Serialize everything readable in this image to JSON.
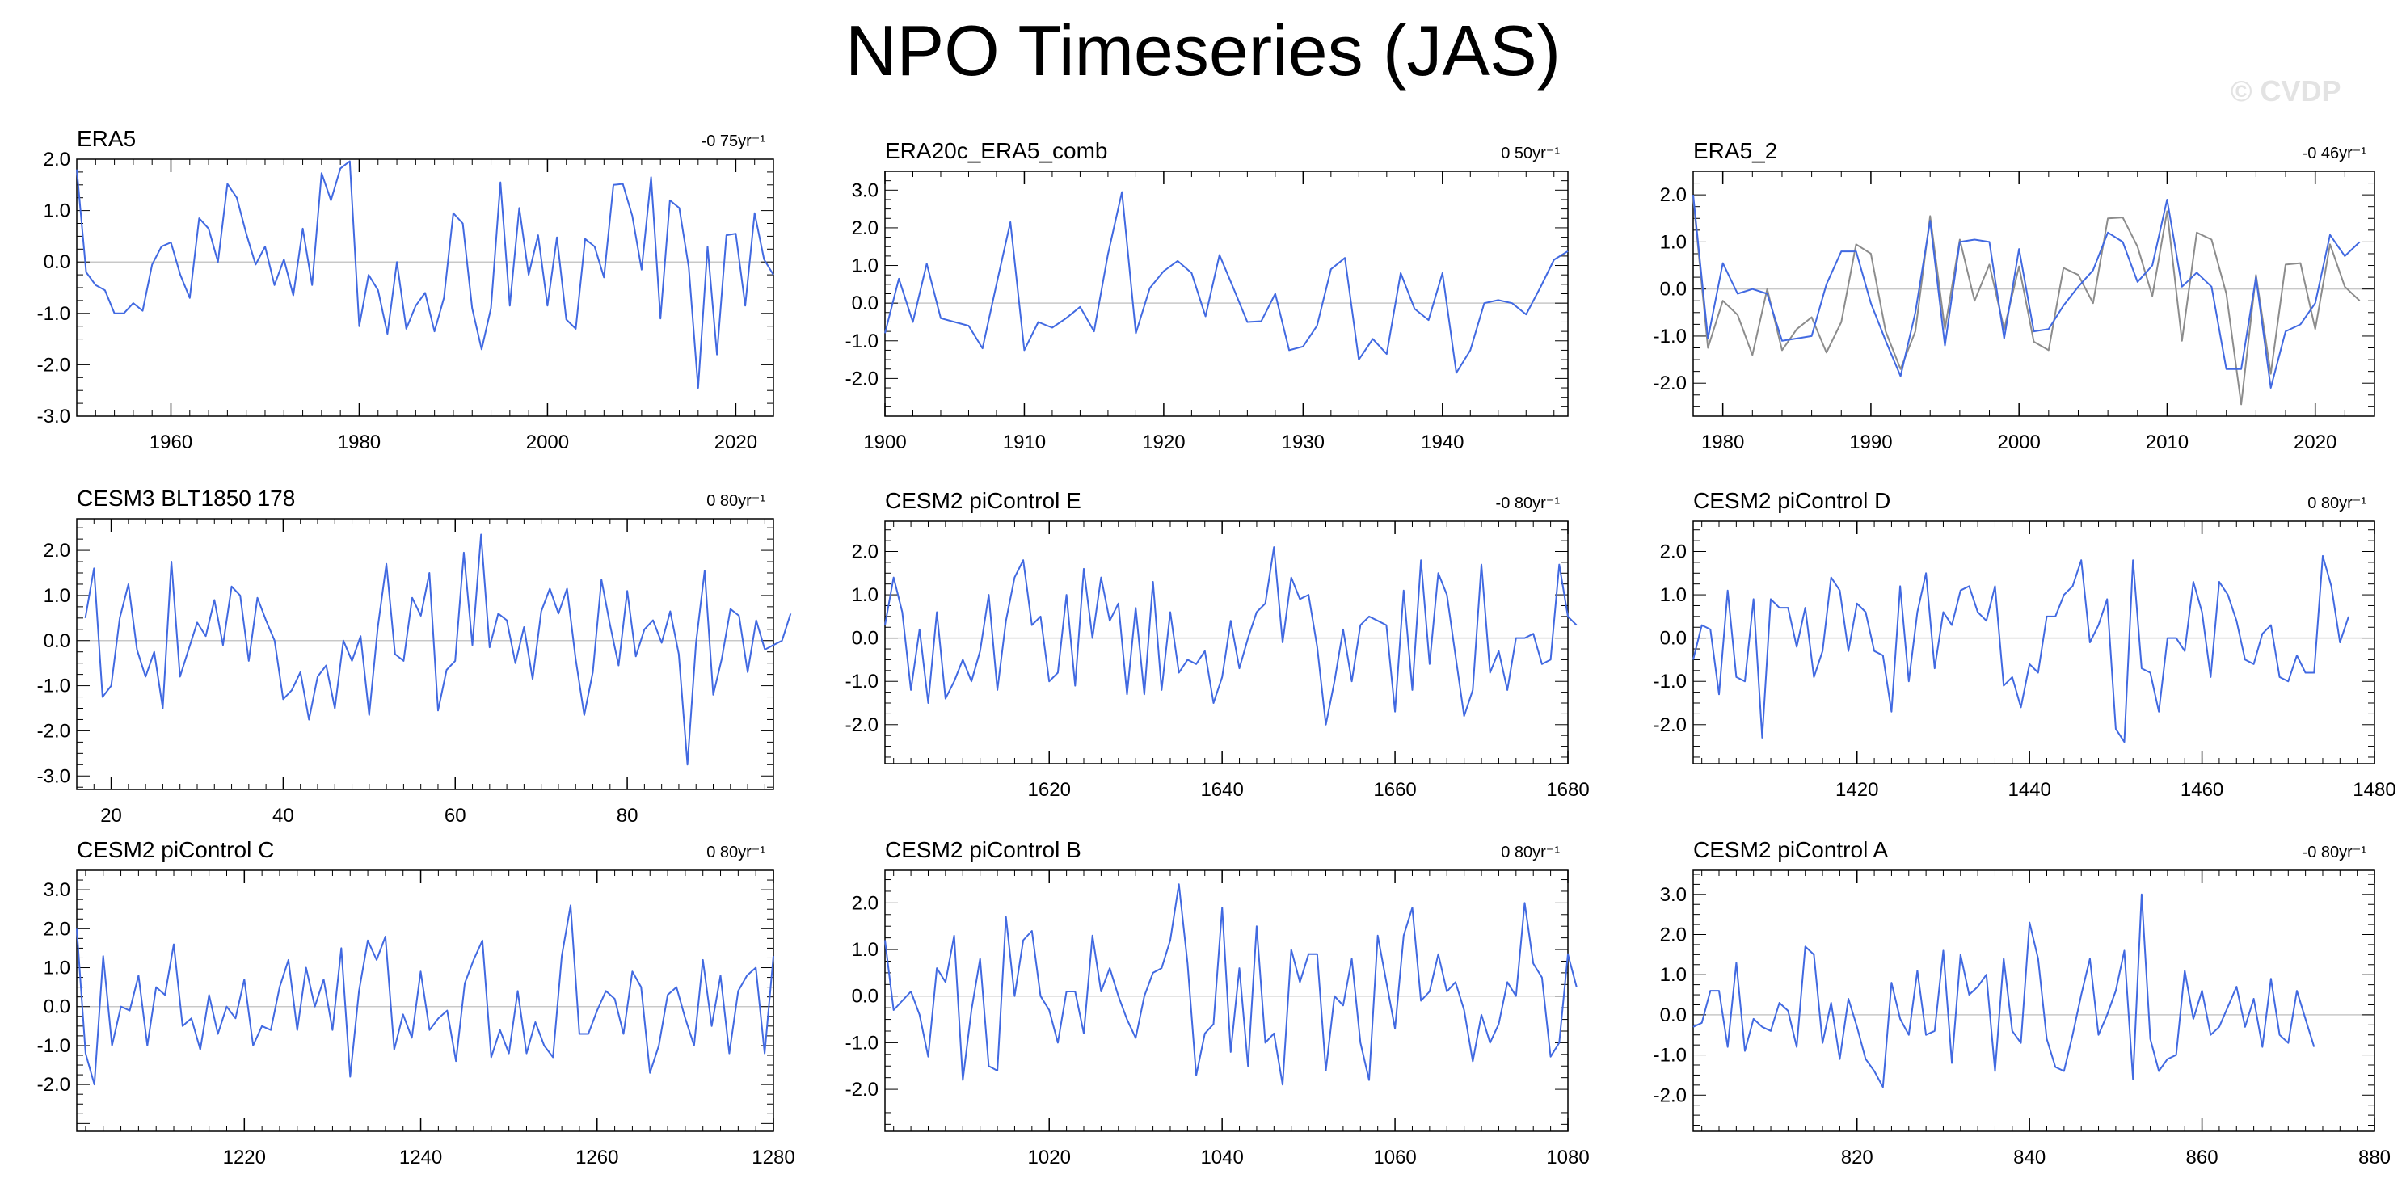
{
  "title": "NPO Timeseries (JAS)",
  "watermark": "© CVDP",
  "colors": {
    "primary": "#4169e1",
    "secondary": "#8c8c8c",
    "zero_line": "#c8c8c8",
    "axis": "#000000"
  },
  "chart_data": [
    {
      "type": "line",
      "title": "ERA5",
      "trend": "-0 75yr⁻¹",
      "xlim": [
        1950,
        2024
      ],
      "ylim": [
        -3,
        2
      ],
      "xticks": [
        1960,
        1980,
        2000,
        2020
      ],
      "yticks": [
        2,
        1,
        0,
        -1,
        -2,
        -3
      ],
      "ytick_labels": [
        "2.0",
        "1.0",
        "0.0",
        "-1.0",
        "-2.0",
        "-3.0"
      ],
      "x_start": 1950,
      "series": [
        {
          "color": "#4169e1",
          "values": [
            1.8,
            -0.2,
            -0.45,
            -0.55,
            -1.0,
            -1.0,
            -0.8,
            -0.95,
            -0.05,
            0.3,
            0.38,
            -0.25,
            -0.7,
            0.85,
            0.65,
            0.0,
            1.52,
            1.25,
            0.55,
            -0.05,
            0.3,
            -0.45,
            0.05,
            -0.65,
            0.65,
            -0.45,
            1.73,
            1.2,
            1.82,
            1.96,
            -1.25,
            -0.25,
            -0.55,
            -1.4,
            0.0,
            -1.3,
            -0.85,
            -0.6,
            -1.35,
            -0.7,
            0.95,
            0.75,
            -0.9,
            -1.7,
            -0.9,
            1.55,
            -0.85,
            1.05,
            -0.25,
            0.52,
            -0.85,
            0.48,
            -1.12,
            -1.3,
            0.45,
            0.3,
            -0.3,
            1.5,
            1.52,
            0.9,
            -0.15,
            1.65,
            -1.1,
            1.2,
            1.05,
            -0.1,
            -2.45,
            0.3,
            -1.8,
            0.52,
            0.55,
            -0.85,
            0.95,
            0.05,
            -0.25
          ]
        }
      ]
    },
    {
      "type": "line",
      "title": "ERA20c_ERA5_comb",
      "trend": "0 50yr⁻¹",
      "xlim": [
        1900,
        1949
      ],
      "ylim": [
        -3,
        3.5
      ],
      "xticks": [
        1900,
        1910,
        1920,
        1930,
        1940
      ],
      "yticks": [
        3,
        2,
        1,
        0,
        -1,
        -2
      ],
      "ytick_labels": [
        "3.0",
        "2.0",
        "1.0",
        "0.0",
        "-1.0",
        "-2.0"
      ],
      "x_start": 1900,
      "series": [
        {
          "color": "#4169e1",
          "values": [
            -0.8,
            0.65,
            -0.5,
            1.05,
            -0.4,
            -0.5,
            -0.6,
            -1.2,
            0.5,
            2.15,
            -1.25,
            -0.5,
            -0.65,
            -0.4,
            -0.1,
            -0.75,
            1.3,
            2.95,
            -0.8,
            0.4,
            0.85,
            1.12,
            0.8,
            -0.35,
            1.28,
            0.4,
            -0.5,
            -0.48,
            0.25,
            -1.25,
            -1.15,
            -0.6,
            0.9,
            1.2,
            -1.5,
            -0.95,
            -1.35,
            0.8,
            -0.15,
            -0.45,
            0.8,
            -1.85,
            -1.25,
            0.0,
            0.08,
            0.0,
            -0.3,
            0.4,
            1.15,
            1.38
          ]
        }
      ]
    },
    {
      "type": "line",
      "title": "ERA5_2",
      "trend": "-0 46yr⁻¹",
      "xlim": [
        1978,
        2024
      ],
      "ylim": [
        -2.7,
        2.5
      ],
      "xticks": [
        1980,
        1990,
        2000,
        2010,
        2020
      ],
      "yticks": [
        2,
        1,
        0,
        -1,
        -2
      ],
      "ytick_labels": [
        "2.0",
        "1.0",
        "0.0",
        "-1.0",
        "-2.0"
      ],
      "x_start": 1978,
      "series": [
        {
          "color": "#8c8c8c",
          "values": [
            1.95,
            -1.25,
            -0.25,
            -0.55,
            -1.4,
            0.0,
            -1.3,
            -0.85,
            -0.6,
            -1.35,
            -0.7,
            0.95,
            0.75,
            -0.9,
            -1.7,
            -0.9,
            1.55,
            -0.85,
            1.05,
            -0.25,
            0.52,
            -0.85,
            0.48,
            -1.12,
            -1.3,
            0.45,
            0.3,
            -0.3,
            1.5,
            1.52,
            0.9,
            -0.15,
            1.65,
            -1.1,
            1.2,
            1.05,
            -0.1,
            -2.45,
            0.3,
            -1.8,
            0.52,
            0.55,
            -0.85,
            0.95,
            0.05,
            -0.25
          ]
        },
        {
          "color": "#4169e1",
          "values": [
            2.0,
            -1.05,
            0.55,
            -0.1,
            0.0,
            -0.1,
            -1.1,
            -1.05,
            -1.0,
            0.1,
            0.8,
            0.8,
            -0.3,
            -1.1,
            -1.85,
            -0.5,
            1.45,
            -1.2,
            1.0,
            1.05,
            1.0,
            -1.05,
            0.85,
            -0.9,
            -0.85,
            -0.35,
            0.05,
            0.4,
            1.2,
            1.0,
            0.15,
            0.5,
            1.9,
            0.05,
            0.35,
            0.05,
            -1.7,
            -1.7,
            0.25,
            -2.1,
            -0.9,
            -0.75,
            -0.3,
            1.15,
            0.7,
            1.0
          ]
        }
      ]
    },
    {
      "type": "line",
      "title": "CESM3 BLT1850 178",
      "trend": "0 80yr⁻¹",
      "xlim": [
        16,
        97
      ],
      "ylim": [
        -3.3,
        2.7
      ],
      "xticks": [
        20,
        40,
        60,
        80
      ],
      "yticks": [
        2,
        1,
        0,
        -1,
        -2,
        -3
      ],
      "ytick_labels": [
        "2.0",
        "1.0",
        "0.0",
        "-1.0",
        "-2.0",
        "-3.0"
      ],
      "x_start": 17,
      "series": [
        {
          "color": "#4169e1",
          "values": [
            0.5,
            1.6,
            -1.25,
            -1.0,
            0.5,
            1.25,
            -0.2,
            -0.8,
            -0.25,
            -1.5,
            1.75,
            -0.8,
            -0.2,
            0.4,
            0.1,
            0.9,
            -0.1,
            1.2,
            1.0,
            -0.45,
            0.95,
            0.45,
            0.0,
            -1.3,
            -1.1,
            -0.7,
            -1.75,
            -0.8,
            -0.55,
            -1.5,
            0.0,
            -0.45,
            0.1,
            -1.65,
            0.3,
            1.7,
            -0.3,
            -0.45,
            0.95,
            0.55,
            1.5,
            -1.55,
            -0.65,
            -0.45,
            1.95,
            -0.1,
            2.35,
            -0.15,
            0.6,
            0.45,
            -0.5,
            0.3,
            -0.85,
            0.65,
            1.15,
            0.6,
            1.15,
            -0.4,
            -1.65,
            -0.7,
            1.35,
            0.35,
            -0.55,
            1.1,
            -0.35,
            0.25,
            0.45,
            -0.05,
            0.65,
            -0.3,
            -2.75,
            -0.05,
            1.55,
            -1.2,
            -0.4,
            0.7,
            0.55,
            -0.7,
            0.45,
            -0.2,
            -0.1,
            0.0,
            0.6
          ]
        }
      ]
    },
    {
      "type": "line",
      "title": "CESM2 piControl E",
      "trend": "-0 80yr⁻¹",
      "xlim": [
        1601,
        1680
      ],
      "ylim": [
        -2.9,
        2.7
      ],
      "xticks": [
        1620,
        1640,
        1660,
        1680
      ],
      "yticks": [
        2,
        1,
        0,
        -1,
        -2
      ],
      "ytick_labels": [
        "2.0",
        "1.0",
        "0.0",
        "-1.0",
        "-2.0"
      ],
      "x_start": 1601,
      "series": [
        {
          "color": "#4169e1",
          "values": [
            0.3,
            1.4,
            0.6,
            -1.2,
            0.2,
            -1.5,
            0.6,
            -1.4,
            -1.0,
            -0.5,
            -1.0,
            -0.3,
            1.0,
            -1.2,
            0.4,
            1.4,
            1.8,
            0.3,
            0.5,
            -1.0,
            -0.8,
            1.0,
            -1.1,
            1.6,
            0.0,
            1.4,
            0.4,
            0.8,
            -1.3,
            0.7,
            -1.3,
            1.3,
            -1.2,
            0.6,
            -0.8,
            -0.5,
            -0.6,
            -0.3,
            -1.5,
            -0.9,
            0.4,
            -0.7,
            0.0,
            0.6,
            0.8,
            2.1,
            -0.1,
            1.4,
            0.9,
            1.0,
            -0.2,
            -2.0,
            -1.0,
            0.2,
            -1.0,
            0.3,
            0.5,
            0.4,
            0.3,
            -1.7,
            1.1,
            -1.2,
            1.8,
            -0.6,
            1.5,
            1.0,
            -0.4,
            -1.8,
            -1.2,
            1.7,
            -0.8,
            -0.3,
            -1.2,
            0.0,
            0.0,
            0.1,
            -0.6,
            -0.5,
            1.7,
            0.5,
            0.3
          ]
        }
      ]
    },
    {
      "type": "line",
      "title": "CESM2 piControl D",
      "trend": "0 80yr⁻¹",
      "xlim": [
        1401,
        1480
      ],
      "ylim": [
        -2.9,
        2.7
      ],
      "xticks": [
        1420,
        1440,
        1460,
        1480
      ],
      "yticks": [
        2,
        1,
        0,
        -1,
        -2
      ],
      "ytick_labels": [
        "2.0",
        "1.0",
        "0.0",
        "-1.0",
        "-2.0"
      ],
      "x_start": 1401,
      "series": [
        {
          "color": "#4169e1",
          "values": [
            -0.5,
            0.3,
            0.2,
            -1.3,
            1.1,
            -0.9,
            -1.0,
            0.9,
            -2.3,
            0.9,
            0.7,
            0.7,
            -0.2,
            0.7,
            -0.9,
            -0.3,
            1.4,
            1.1,
            -0.3,
            0.8,
            0.6,
            -0.3,
            -0.4,
            -1.7,
            1.2,
            -1.0,
            0.6,
            1.5,
            -0.7,
            0.6,
            0.3,
            1.1,
            1.2,
            0.6,
            0.4,
            1.2,
            -1.1,
            -0.9,
            -1.6,
            -0.6,
            -0.8,
            0.5,
            0.5,
            1.0,
            1.2,
            1.8,
            -0.1,
            0.3,
            0.9,
            -2.1,
            -2.4,
            1.8,
            -0.7,
            -0.8,
            -1.7,
            0.0,
            0.0,
            -0.3,
            1.3,
            0.6,
            -0.9,
            1.3,
            1.0,
            0.4,
            -0.5,
            -0.6,
            0.1,
            0.3,
            -0.9,
            -1.0,
            -0.4,
            -0.8,
            -0.8,
            1.9,
            1.2,
            -0.1,
            0.5
          ]
        }
      ]
    },
    {
      "type": "line",
      "title": "CESM2 piControl C",
      "trend": "0 80yr⁻¹",
      "xlim": [
        1201,
        1280
      ],
      "ylim": [
        -3.2,
        3.5
      ],
      "xticks": [
        1220,
        1240,
        1260,
        1280
      ],
      "yticks": [
        3,
        2,
        1,
        0,
        -1,
        -2
      ],
      "ytick_labels": [
        "3.0",
        "2.0",
        "1.0",
        "0.0",
        "-1.0",
        "-2.0"
      ],
      "x_start": 1201,
      "series": [
        {
          "color": "#4169e1",
          "values": [
            2.0,
            -1.2,
            -2.0,
            1.3,
            -1.0,
            0.0,
            -0.1,
            0.8,
            -1.0,
            0.5,
            0.3,
            1.6,
            -0.5,
            -0.3,
            -1.1,
            0.3,
            -0.7,
            0.0,
            -0.3,
            0.7,
            -1.0,
            -0.5,
            -0.6,
            0.5,
            1.2,
            -0.6,
            1.0,
            0.0,
            0.7,
            -0.6,
            1.5,
            -1.8,
            0.4,
            1.7,
            1.2,
            1.8,
            -1.1,
            -0.2,
            -0.8,
            0.9,
            -0.6,
            -0.3,
            -0.1,
            -1.4,
            0.6,
            1.2,
            1.7,
            -1.3,
            -0.6,
            -1.2,
            0.4,
            -1.2,
            -0.4,
            -1.0,
            -1.3,
            1.3,
            2.6,
            -0.7,
            -0.7,
            -0.1,
            0.4,
            0.2,
            -0.7,
            0.9,
            0.5,
            -1.7,
            -1.0,
            0.3,
            0.5,
            -0.3,
            -1.0,
            1.2,
            -0.5,
            0.8,
            -1.2,
            0.4,
            0.8,
            1.0,
            -1.2,
            1.3
          ]
        }
      ]
    },
    {
      "type": "line",
      "title": "CESM2 piControl B",
      "trend": "0 80yr⁻¹",
      "xlim": [
        1001,
        1080
      ],
      "ylim": [
        -2.9,
        2.7
      ],
      "xticks": [
        1020,
        1040,
        1060,
        1080
      ],
      "yticks": [
        2,
        1,
        0,
        -1,
        -2
      ],
      "ytick_labels": [
        "2.0",
        "1.0",
        "0.0",
        "-1.0",
        "-2.0"
      ],
      "x_start": 1001,
      "series": [
        {
          "color": "#4169e1",
          "values": [
            1.2,
            -0.3,
            -0.1,
            0.1,
            -0.4,
            -1.3,
            0.6,
            0.3,
            1.3,
            -1.8,
            -0.3,
            0.8,
            -1.5,
            -1.6,
            1.7,
            0.0,
            1.2,
            1.4,
            0.0,
            -0.3,
            -1.0,
            0.1,
            0.1,
            -0.8,
            1.3,
            0.1,
            0.6,
            0.0,
            -0.5,
            -0.9,
            0.0,
            0.5,
            0.6,
            1.2,
            2.4,
            0.7,
            -1.7,
            -0.8,
            -0.6,
            1.9,
            -1.2,
            0.6,
            -1.5,
            1.5,
            -1.0,
            -0.8,
            -1.9,
            1.0,
            0.3,
            0.9,
            0.9,
            -1.6,
            0.0,
            -0.2,
            0.8,
            -1.0,
            -1.8,
            1.3,
            0.3,
            -0.7,
            1.3,
            1.9,
            -0.1,
            0.1,
            0.9,
            0.1,
            0.3,
            -0.3,
            -1.4,
            -0.4,
            -1.0,
            -0.6,
            0.3,
            0.0,
            2.0,
            0.7,
            0.4,
            -1.3,
            -1.0,
            0.9,
            0.2
          ]
        }
      ]
    },
    {
      "type": "line",
      "title": "CESM2 piControl A",
      "trend": "-0 80yr⁻¹",
      "xlim": [
        801,
        880
      ],
      "ylim": [
        -2.9,
        3.6
      ],
      "xticks": [
        820,
        840,
        860,
        880
      ],
      "yticks": [
        3,
        2,
        1,
        0,
        -1,
        -2
      ],
      "ytick_labels": [
        "3.0",
        "2.0",
        "1.0",
        "0.0",
        "-1.0",
        "-2.0"
      ],
      "x_start": 801,
      "series": [
        {
          "color": "#4169e1",
          "values": [
            -0.3,
            -0.2,
            0.6,
            0.6,
            -0.8,
            1.3,
            -0.9,
            -0.1,
            -0.3,
            -0.4,
            0.3,
            0.1,
            -0.8,
            1.7,
            1.5,
            -0.7,
            0.3,
            -1.1,
            0.4,
            -0.3,
            -1.1,
            -1.4,
            -1.8,
            0.8,
            -0.1,
            -0.5,
            1.1,
            -0.5,
            -0.4,
            1.6,
            -1.2,
            1.5,
            0.5,
            0.7,
            1.0,
            -1.4,
            1.4,
            -0.4,
            -0.7,
            2.3,
            1.4,
            -0.6,
            -1.3,
            -1.4,
            -0.5,
            0.5,
            1.4,
            -0.5,
            0.0,
            0.6,
            1.6,
            -1.6,
            3.0,
            -0.6,
            -1.4,
            -1.1,
            -1.0,
            1.1,
            -0.1,
            0.6,
            -0.5,
            -0.3,
            0.2,
            0.7,
            -0.3,
            0.4,
            -0.8,
            0.9,
            -0.5,
            -0.7,
            0.6,
            -0.1,
            -0.8
          ]
        }
      ]
    }
  ]
}
